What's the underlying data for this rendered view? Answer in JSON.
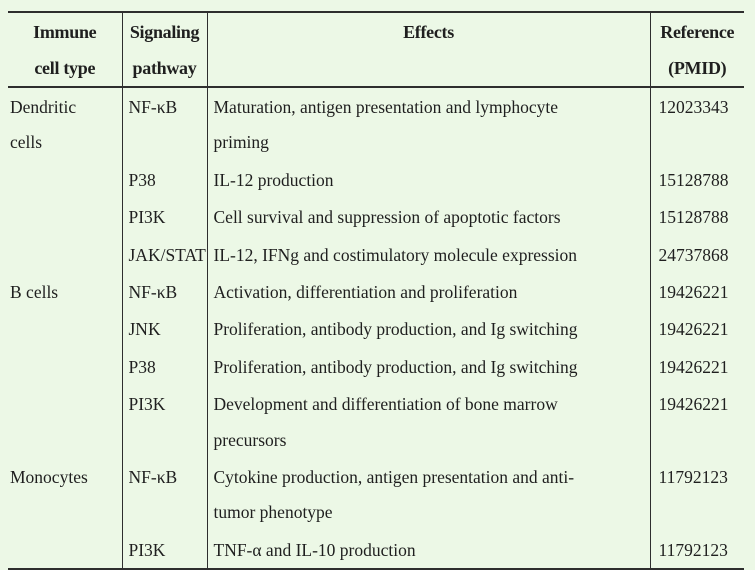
{
  "page": {
    "background_color": "#ecf8e6",
    "border_color": "#2e2e2e",
    "text_color": "#1f1f1f"
  },
  "table": {
    "columns": [
      {
        "id": "cell-type",
        "header_lines": [
          "Immune",
          "cell type"
        ]
      },
      {
        "id": "pathway",
        "header_lines": [
          "Signaling",
          "pathway"
        ]
      },
      {
        "id": "effects",
        "header_lines": [
          "Effects"
        ]
      },
      {
        "id": "reference",
        "header_lines": [
          "Reference",
          "(PMID)"
        ]
      }
    ],
    "groups": [
      {
        "cell_type_lines": [
          "Dendritic",
          "cells"
        ],
        "rows": [
          {
            "pathway": "NF-κB",
            "effect_lines": [
              "Maturation, antigen presentation and lymphocyte",
              "priming"
            ],
            "pmid": "12023343"
          },
          {
            "pathway": "P38",
            "effect_lines": [
              "IL-12 production"
            ],
            "pmid": "15128788"
          },
          {
            "pathway": "PI3K",
            "effect_lines": [
              "Cell survival and suppression of apoptotic factors"
            ],
            "pmid": "15128788"
          },
          {
            "pathway": "JAK/STAT",
            "effect_lines": [
              "IL-12, IFNg and costimulatory molecule expression"
            ],
            "pmid": "24737868"
          }
        ]
      },
      {
        "cell_type_lines": [
          "B cells"
        ],
        "rows": [
          {
            "pathway": "NF-κB",
            "effect_lines": [
              "Activation, differentiation and proliferation"
            ],
            "pmid": "19426221"
          },
          {
            "pathway": "JNK",
            "effect_lines": [
              "Proliferation, antibody production, and Ig switching"
            ],
            "pmid": "19426221"
          },
          {
            "pathway": "P38",
            "effect_lines": [
              "Proliferation, antibody production, and Ig switching"
            ],
            "pmid": "19426221"
          },
          {
            "pathway": "PI3K",
            "effect_lines": [
              "Development and differentiation of bone marrow",
              "precursors"
            ],
            "pmid": "19426221"
          }
        ]
      },
      {
        "cell_type_lines": [
          "Monocytes"
        ],
        "rows": [
          {
            "pathway": "NF-κB",
            "effect_lines": [
              "Cytokine production, antigen presentation and anti-",
              "tumor phenotype"
            ],
            "pmid": "11792123"
          },
          {
            "pathway": "PI3K",
            "effect_lines": [
              "TNF-α and IL-10 production"
            ],
            "pmid": "11792123"
          }
        ]
      }
    ]
  }
}
